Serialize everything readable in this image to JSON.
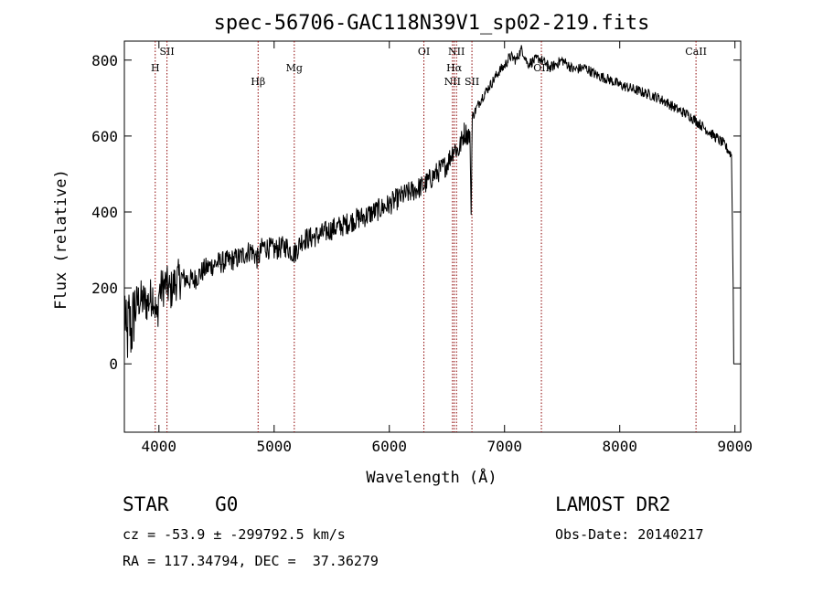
{
  "chart_data": {
    "type": "line",
    "title": "spec-56706-GAC118N39V1_sp02-219.fits",
    "xlabel": "Wavelength (Å)",
    "ylabel": "Flux (relative)",
    "xlim": [
      3700,
      9050
    ],
    "ylim": [
      -180,
      850
    ],
    "xticks": [
      4000,
      5000,
      6000,
      7000,
      8000,
      9000
    ],
    "yticks": [
      0,
      200,
      400,
      600,
      800
    ],
    "grid": false,
    "colors": {
      "spectrum": "#000000",
      "lines": "#8b0000"
    },
    "spectrum_anchor_points": [
      [
        3705,
        150
      ],
      [
        3720,
        50
      ],
      [
        3740,
        120
      ],
      [
        3760,
        80
      ],
      [
        3790,
        150
      ],
      [
        3830,
        170
      ],
      [
        3900,
        160
      ],
      [
        3950,
        185
      ],
      [
        3985,
        110
      ],
      [
        4000,
        190
      ],
      [
        4060,
        210
      ],
      [
        4100,
        190
      ],
      [
        4150,
        220
      ],
      [
        4200,
        225
      ],
      [
        4300,
        220
      ],
      [
        4400,
        250
      ],
      [
        4500,
        265
      ],
      [
        4600,
        270
      ],
      [
        4700,
        280
      ],
      [
        4800,
        300
      ],
      [
        4860,
        275
      ],
      [
        4900,
        310
      ],
      [
        5000,
        300
      ],
      [
        5100,
        310
      ],
      [
        5175,
        290
      ],
      [
        5250,
        330
      ],
      [
        5300,
        330
      ],
      [
        5400,
        340
      ],
      [
        5500,
        355
      ],
      [
        5600,
        365
      ],
      [
        5700,
        380
      ],
      [
        5800,
        390
      ],
      [
        5900,
        405
      ],
      [
        6000,
        420
      ],
      [
        6100,
        440
      ],
      [
        6200,
        455
      ],
      [
        6300,
        470
      ],
      [
        6400,
        500
      ],
      [
        6500,
        525
      ],
      [
        6563,
        570
      ],
      [
        6600,
        560
      ],
      [
        6650,
        610
      ],
      [
        6700,
        600
      ],
      [
        6710,
        390
      ],
      [
        6720,
        650
      ],
      [
        6800,
        700
      ],
      [
        6900,
        745
      ],
      [
        6950,
        770
      ],
      [
        7000,
        785
      ],
      [
        7050,
        810
      ],
      [
        7100,
        800
      ],
      [
        7150,
        830
      ],
      [
        7200,
        790
      ],
      [
        7300,
        805
      ],
      [
        7400,
        780
      ],
      [
        7500,
        800
      ],
      [
        7600,
        775
      ],
      [
        7700,
        780
      ],
      [
        7800,
        760
      ],
      [
        7900,
        750
      ],
      [
        8000,
        735
      ],
      [
        8100,
        725
      ],
      [
        8200,
        715
      ],
      [
        8300,
        705
      ],
      [
        8400,
        690
      ],
      [
        8500,
        670
      ],
      [
        8600,
        655
      ],
      [
        8700,
        630
      ],
      [
        8800,
        605
      ],
      [
        8900,
        580
      ],
      [
        8970,
        550
      ],
      [
        8985,
        200
      ],
      [
        8990,
        0
      ]
    ],
    "reference_lines": [
      {
        "label": "H",
        "x": 3968
      },
      {
        "label": "SII",
        "x": 4070
      },
      {
        "label": "Hβ",
        "x": 4861
      },
      {
        "label": "Mg",
        "x": 5175
      },
      {
        "label": "OI",
        "x": 6300
      },
      {
        "label": "NII",
        "x": 6548
      },
      {
        "label": "Hα",
        "x": 6563
      },
      {
        "label": "NII",
        "x": 6583
      },
      {
        "label": "SII",
        "x": 6717
      },
      {
        "label": "OII",
        "x": 7320
      },
      {
        "label": "CaII",
        "x": 8662
      }
    ]
  },
  "footer": {
    "classification": "STAR    G0",
    "survey": "LAMOST DR2",
    "cz": "cz = -53.9 ± -299792.5 km/s",
    "obs_date": "Obs-Date: 20140217",
    "coords": "RA = 117.34794, DEC =  37.36279"
  }
}
